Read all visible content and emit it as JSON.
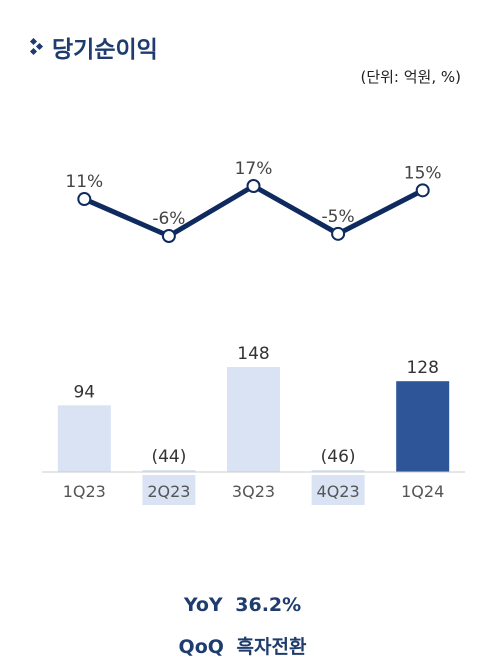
{
  "title": "당기순이익",
  "unit": "(단위: 억원, %)",
  "chart_data": {
    "type": "bar",
    "categories": [
      "1Q23",
      "2Q23",
      "3Q23",
      "4Q23",
      "1Q24"
    ],
    "values": [
      94,
      -44,
      148,
      -46,
      128
    ],
    "value_labels": [
      "94",
      "(44)",
      "148",
      "(46)",
      "128"
    ],
    "line_series": {
      "values": [
        11,
        -6,
        17,
        -5,
        15
      ],
      "labels": [
        "11%",
        "-6%",
        "17%",
        "-5%",
        "15%"
      ]
    },
    "colors": {
      "bar": "#d9e3f3",
      "bar_highlight": "#2e5597",
      "line": "#0e2a5e",
      "negative_tick_bg": "#d9e3f3"
    },
    "ylim": [
      0,
      160
    ]
  },
  "summary": {
    "yoy": "YoY 36.2%",
    "qoq": "QoQ 흑자전환"
  }
}
